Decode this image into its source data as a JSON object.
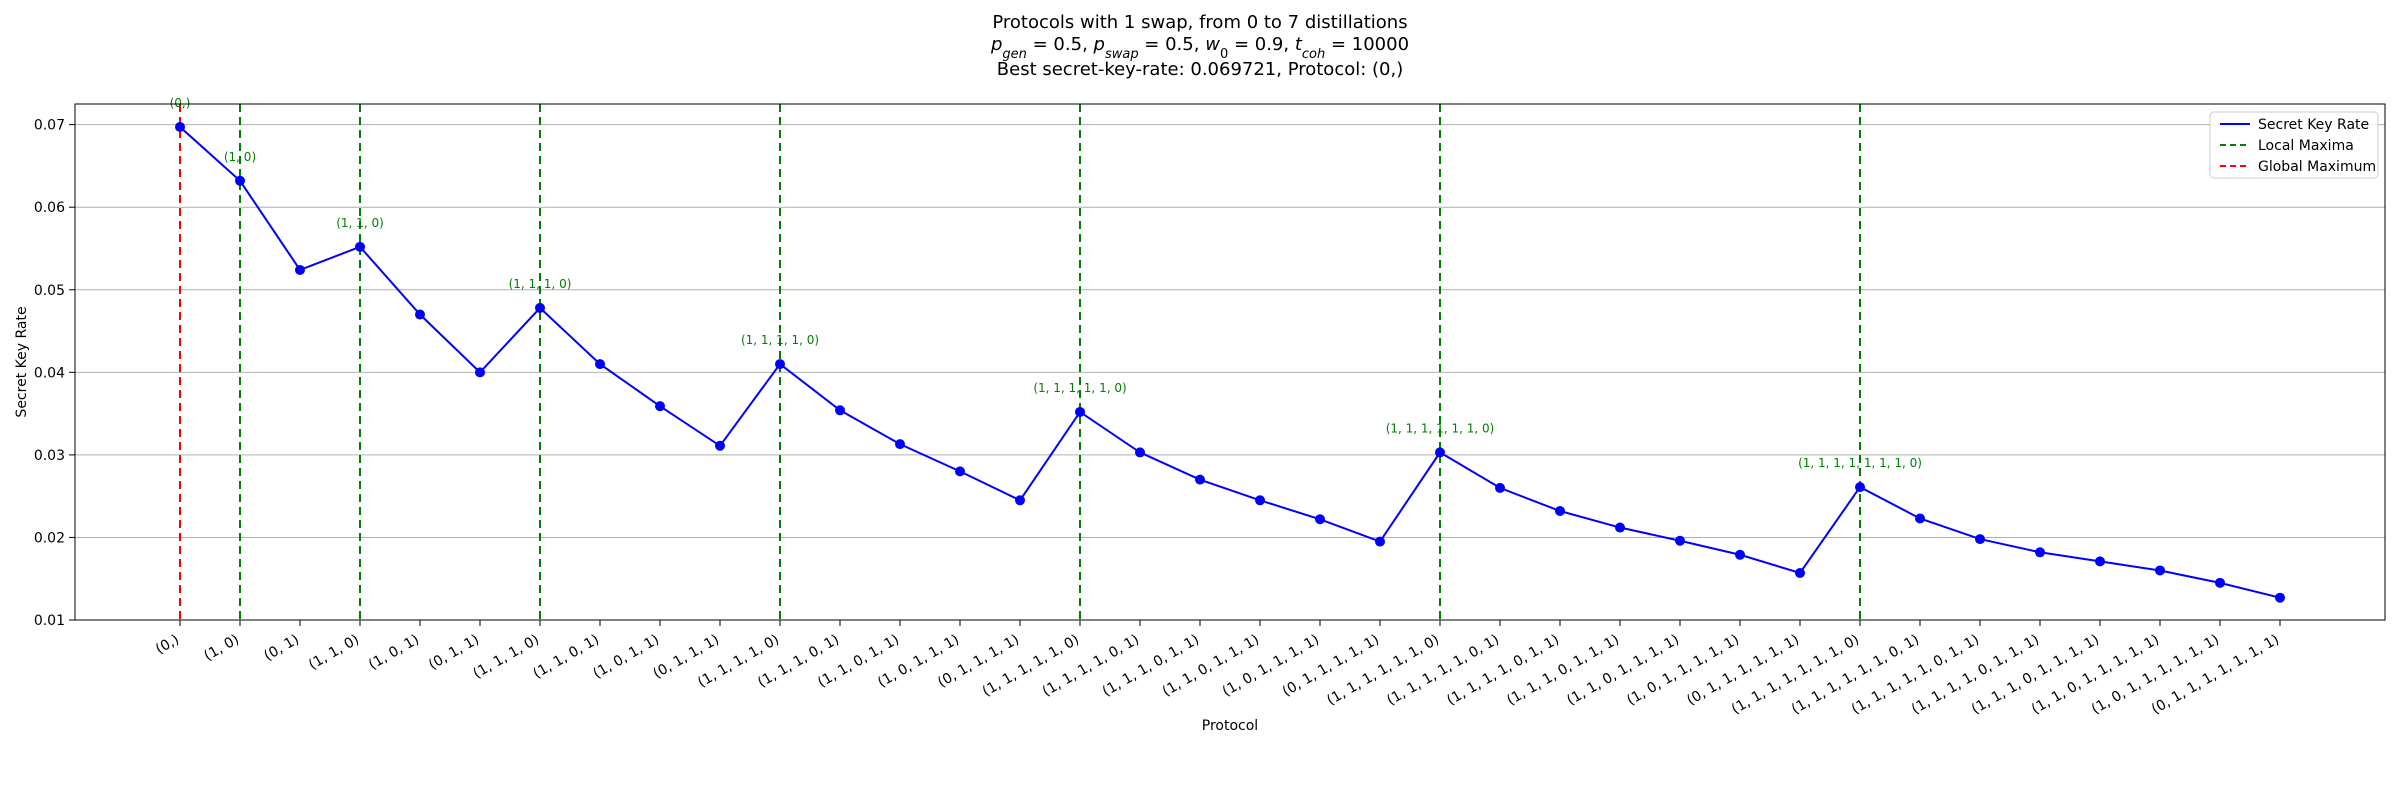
{
  "chart_data": {
    "type": "line",
    "title_lines": [
      "Protocols with 1 swap, from 0 to 7 distillations",
      "p_gen = 0.5, p_swap = 0.5, w_0 = 0.9, t_coh = 10000",
      "Best secret-key-rate: 0.069721, Protocol: (0,)"
    ],
    "title_math": {
      "p_gen": "0.5",
      "p_swap": "0.5",
      "w_0": "0.9",
      "t_coh": "10000"
    },
    "xlabel": "Protocol",
    "ylabel": "Secret Key Rate",
    "ylim": [
      0.01,
      0.0725
    ],
    "yticks": [
      "0.01",
      "0.02",
      "0.03",
      "0.04",
      "0.05",
      "0.06",
      "0.07"
    ],
    "grid": "horizontal",
    "legend_position": "top-right",
    "categories": [
      "(0,)",
      "(1, 0)",
      "(0, 1)",
      "(1, 1, 0)",
      "(1, 0, 1)",
      "(0, 1, 1)",
      "(1, 1, 1, 0)",
      "(1, 1, 0, 1)",
      "(1, 0, 1, 1)",
      "(0, 1, 1, 1)",
      "(1, 1, 1, 1, 0)",
      "(1, 1, 1, 0, 1)",
      "(1, 1, 0, 1, 1)",
      "(1, 0, 1, 1, 1)",
      "(0, 1, 1, 1, 1)",
      "(1, 1, 1, 1, 1, 0)",
      "(1, 1, 1, 1, 0, 1)",
      "(1, 1, 1, 0, 1, 1)",
      "(1, 1, 0, 1, 1, 1)",
      "(1, 0, 1, 1, 1, 1)",
      "(0, 1, 1, 1, 1, 1)",
      "(1, 1, 1, 1, 1, 1, 0)",
      "(1, 1, 1, 1, 1, 0, 1)",
      "(1, 1, 1, 1, 0, 1, 1)",
      "(1, 1, 1, 0, 1, 1, 1)",
      "(1, 1, 0, 1, 1, 1, 1)",
      "(1, 0, 1, 1, 1, 1, 1)",
      "(0, 1, 1, 1, 1, 1, 1)",
      "(1, 1, 1, 1, 1, 1, 1, 0)",
      "(1, 1, 1, 1, 1, 1, 0, 1)",
      "(1, 1, 1, 1, 1, 0, 1, 1)",
      "(1, 1, 1, 1, 0, 1, 1, 1)",
      "(1, 1, 1, 0, 1, 1, 1, 1)",
      "(1, 1, 0, 1, 1, 1, 1, 1)",
      "(1, 0, 1, 1, 1, 1, 1, 1)",
      "(0, 1, 1, 1, 1, 1, 1, 1)"
    ],
    "series": [
      {
        "name": "Secret Key Rate",
        "color": "#0000ff",
        "values": [
          0.069721,
          0.0632,
          0.0524,
          0.0552,
          0.047,
          0.04,
          0.0478,
          0.041,
          0.0359,
          0.0311,
          0.041,
          0.0354,
          0.0313,
          0.028,
          0.0245,
          0.0352,
          0.0303,
          0.027,
          0.0245,
          0.0222,
          0.0195,
          0.0303,
          0.026,
          0.0232,
          0.0212,
          0.0196,
          0.0179,
          0.0157,
          0.0261,
          0.0223,
          0.0198,
          0.0182,
          0.0171,
          0.016,
          0.0145,
          0.0127
        ]
      }
    ],
    "local_maxima_indices": [
      1,
      3,
      6,
      10,
      15,
      21,
      28
    ],
    "global_maximum_index": 0,
    "annotations": [
      {
        "index": 0,
        "text": "(0,)"
      },
      {
        "index": 1,
        "text": "(1, 0)"
      },
      {
        "index": 3,
        "text": "(1, 1, 0)"
      },
      {
        "index": 6,
        "text": "(1, 1, 1, 0)"
      },
      {
        "index": 10,
        "text": "(1, 1, 1, 1, 0)"
      },
      {
        "index": 15,
        "text": "(1, 1, 1, 1, 1, 0)"
      },
      {
        "index": 21,
        "text": "(1, 1, 1, 1, 1, 1, 0)"
      },
      {
        "index": 28,
        "text": "(1, 1, 1, 1, 1, 1, 1, 0)"
      }
    ],
    "legend": [
      {
        "label": "Secret Key Rate",
        "color": "#0000ff",
        "style": "solid"
      },
      {
        "label": "Local Maxima",
        "color": "#008000",
        "style": "dashed"
      },
      {
        "label": "Global Maximum",
        "color": "#ff0000",
        "style": "dashed"
      }
    ]
  }
}
